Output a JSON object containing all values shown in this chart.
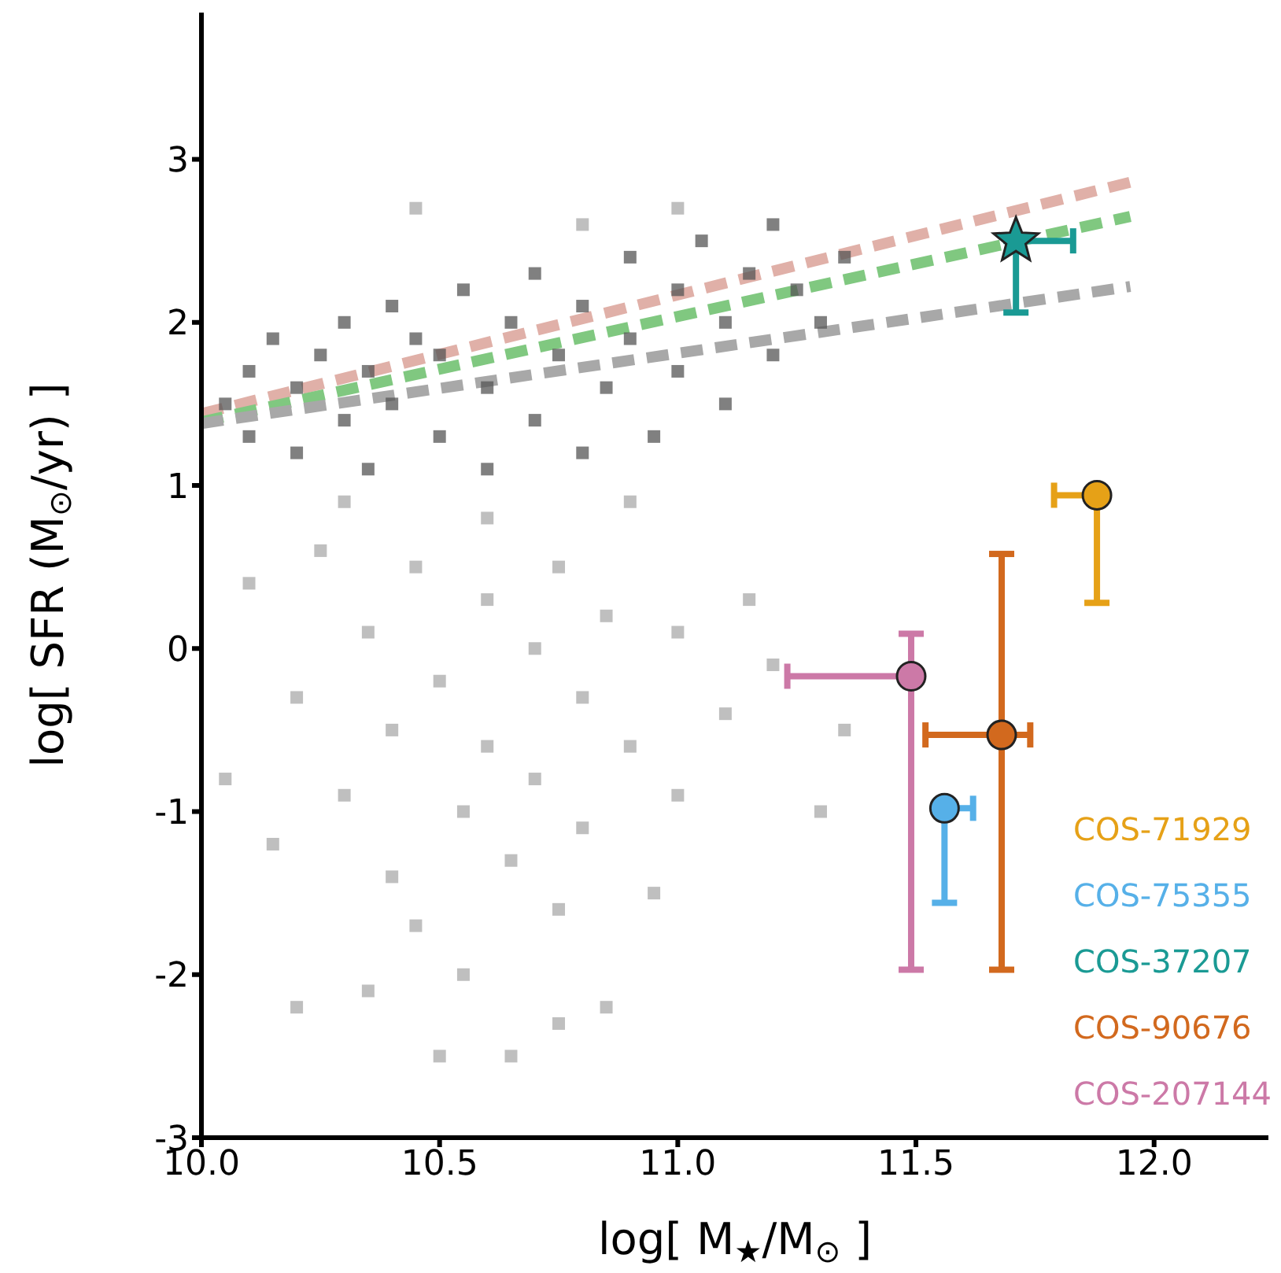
{
  "chart_data": {
    "type": "scatter",
    "xlabel": "log[ M$_{★}$/M$_{⊙}$ ]",
    "ylabel": "log[ SFR (M$_{⊙}$/yr) ]",
    "xlim": [
      10,
      12.24
    ],
    "ylim": [
      -3,
      3.9
    ],
    "xticks": [
      {
        "value": 10,
        "label": "10.0"
      },
      10.5,
      {
        "value": 11,
        "label": "11.0"
      },
      11.5,
      {
        "value": 12,
        "label": "12.0"
      }
    ],
    "yticks": [
      -3,
      -2,
      -1,
      0,
      1,
      2,
      3
    ],
    "legend": "bottom right",
    "series": [
      {
        "marker": "square",
        "color": "#555555",
        "x": [
          10.05,
          10.1,
          10.1,
          10.15,
          10.2,
          10.2,
          10.25,
          10.3,
          10.3,
          10.35,
          10.35,
          10.4,
          10.4,
          10.45,
          10.5,
          10.5,
          10.55,
          10.6,
          10.6,
          10.65,
          10.7,
          10.7,
          10.75,
          10.8,
          10.8,
          10.85,
          10.9,
          10.9,
          10.95,
          11.0,
          11.0,
          11.05,
          11.1,
          11.1,
          11.15,
          11.2,
          11.2,
          11.25,
          11.3,
          11.35
        ],
        "values": [
          1.5,
          1.3,
          1.7,
          1.9,
          1.2,
          1.6,
          1.8,
          1.4,
          2.0,
          1.1,
          1.7,
          1.5,
          2.1,
          1.9,
          1.3,
          1.8,
          2.2,
          1.6,
          1.1,
          2.0,
          1.4,
          2.3,
          1.8,
          1.2,
          2.1,
          1.6,
          2.4,
          1.9,
          1.3,
          2.2,
          1.7,
          2.5,
          2.0,
          1.5,
          2.3,
          2.6,
          1.8,
          2.2,
          2.0,
          2.4
        ]
      },
      {
        "marker": "square",
        "color": "#aaaaaa",
        "x": [
          10.45,
          10.8,
          11.0,
          10.05,
          10.1,
          10.15,
          10.2,
          10.25,
          10.3,
          10.35,
          10.4,
          10.4,
          10.45,
          10.5,
          10.55,
          10.6,
          10.6,
          10.65,
          10.7,
          10.7,
          10.75,
          10.8,
          10.8,
          10.85,
          10.9,
          10.95,
          11.0,
          11.0,
          11.1,
          11.15,
          11.2,
          11.3,
          11.35,
          10.3,
          10.6,
          10.9,
          10.2,
          10.35,
          10.5,
          10.55,
          10.65,
          10.75,
          10.85,
          10.45,
          10.75
        ],
        "values": [
          2.7,
          2.6,
          2.7,
          -0.8,
          0.4,
          -1.2,
          -0.3,
          0.6,
          -0.9,
          0.1,
          -0.5,
          -1.4,
          0.5,
          -0.2,
          -1.0,
          0.3,
          -0.6,
          -1.3,
          0.0,
          -0.8,
          0.5,
          -0.3,
          -1.1,
          0.2,
          -0.6,
          -1.5,
          0.1,
          -0.9,
          -0.4,
          0.3,
          -0.1,
          -1.0,
          -0.5,
          0.9,
          0.8,
          0.9,
          -2.2,
          -2.1,
          -2.5,
          -2.0,
          -2.5,
          -2.3,
          -2.2,
          -1.7,
          -1.6
        ]
      },
      {
        "type": "line",
        "line_style": "dashed",
        "color": "#e0b0a8",
        "x": [
          10,
          11.95
        ],
        "values": [
          1.44,
          2.86
        ]
      },
      {
        "type": "line",
        "line_style": "dashed",
        "color": "#80c880",
        "x": [
          10,
          11.95
        ],
        "values": [
          1.39,
          2.65
        ]
      },
      {
        "type": "line",
        "line_style": "dashed",
        "color": "#a8a8a8",
        "x": [
          10,
          11.95
        ],
        "values": [
          1.38,
          2.22
        ]
      },
      {
        "marker": "circle",
        "name": "COS-71929",
        "color": "#e6a117",
        "x": [
          11.88
        ],
        "values": [
          0.94
        ],
        "errors": [
          [
            0.28,
            0.94
          ]
        ],
        "xerrors": [
          [
            11.79,
            11.88
          ]
        ]
      },
      {
        "marker": "circle",
        "name": "COS-75355",
        "color": "#56b0e8",
        "x": [
          11.56
        ],
        "values": [
          -0.98
        ],
        "errors": [
          [
            -1.56,
            -0.98
          ]
        ],
        "xerrors": [
          [
            11.56,
            11.62
          ]
        ]
      },
      {
        "marker": "star",
        "name": "COS-37207",
        "color": "#1a9a94",
        "x": [
          11.71
        ],
        "values": [
          2.5
        ],
        "errors": [
          [
            2.06,
            2.5
          ]
        ],
        "xerrors": [
          [
            11.71,
            11.83
          ]
        ]
      },
      {
        "marker": "circle",
        "name": "COS-90676",
        "color": "#d2691e",
        "x": [
          11.68
        ],
        "values": [
          -0.53
        ],
        "errors": [
          [
            -1.97,
            0.58
          ]
        ],
        "xerrors": [
          [
            11.52,
            11.74
          ]
        ]
      },
      {
        "marker": "circle",
        "name": "COS-207144",
        "color": "#cc79a7",
        "x": [
          11.49
        ],
        "values": [
          -0.17
        ],
        "errors": [
          [
            -1.97,
            0.09
          ]
        ],
        "xerrors": [
          [
            11.23,
            11.49
          ]
        ]
      }
    ]
  }
}
